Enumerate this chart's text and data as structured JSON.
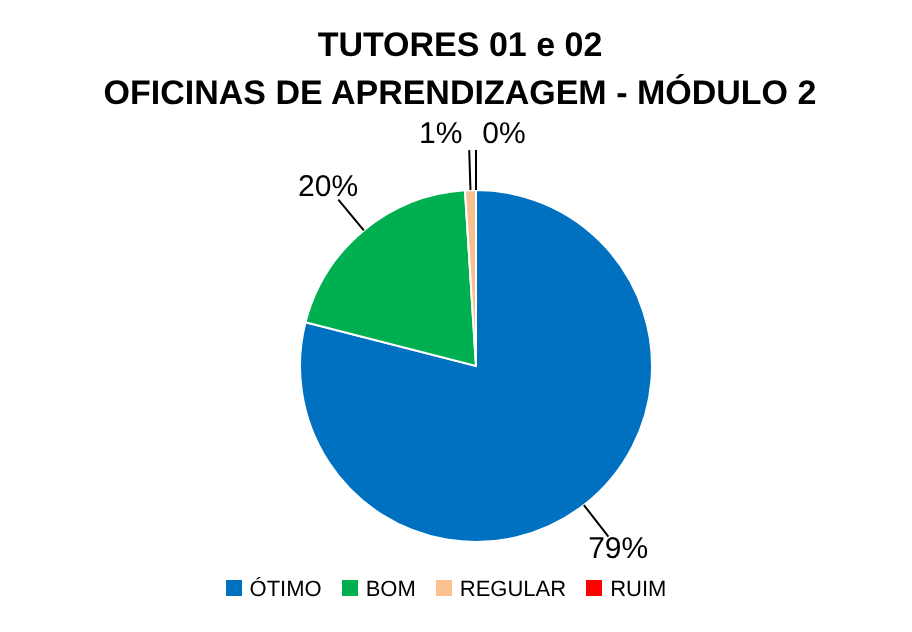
{
  "chart_data": {
    "type": "pie",
    "title": "TUTORES 01 e 02",
    "subtitle": "OFICINAS DE APRENDIZAGEM - MÓDULO 2",
    "categories": [
      "ÓTIMO",
      "BOM",
      "REGULAR",
      "RUIM"
    ],
    "values": [
      79,
      20,
      1,
      0
    ],
    "colors": [
      "#0070c0",
      "#00b050",
      "#fac090",
      "#ff0000"
    ],
    "value_labels": [
      "79%",
      "20%",
      "1%",
      "0%"
    ],
    "legend": "bottom"
  }
}
